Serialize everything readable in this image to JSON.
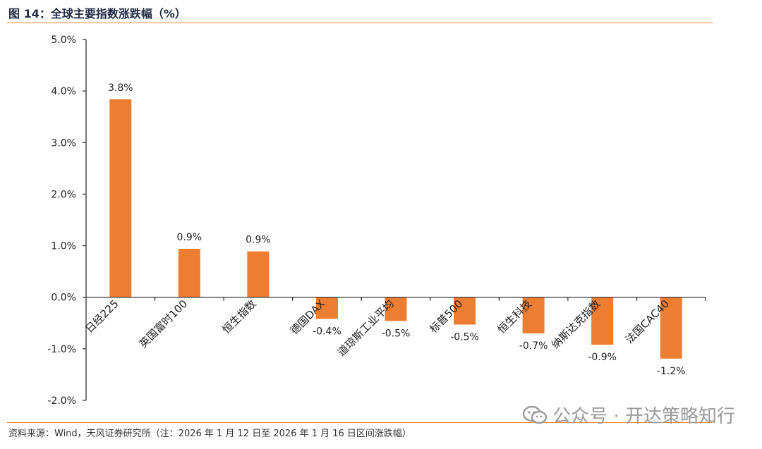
{
  "figure_title": "图 14：全球主要指数涨跌幅（%）",
  "source_note": "资料来源：Wind，天风证券研究所（注：2026 年 1 月 12 日至 2026 年 1 月 16 日区间涨跌幅）",
  "watermark": {
    "icon": "wechat-icon",
    "text": "公众号 · 开达策略知行"
  },
  "colors": {
    "bar": "#ed7d31",
    "rule": "#e8862e",
    "axis": "#333333",
    "title": "#1f2a44"
  },
  "chart_data": {
    "type": "bar",
    "title": "全球主要指数涨跌幅（%）",
    "xlabel": "",
    "ylabel": "",
    "ylim": [
      -2.0,
      5.0
    ],
    "yticks": [
      5.0,
      4.0,
      3.0,
      2.0,
      1.0,
      0.0,
      -1.0,
      -2.0
    ],
    "ytick_labels": [
      "5.0%",
      "4.0%",
      "3.0%",
      "2.0%",
      "1.0%",
      "0.0%",
      "-1.0%",
      "-2.0%"
    ],
    "grid": false,
    "categories": [
      "日经225",
      "英国富时100",
      "恒生指数",
      "德国DAX",
      "道琼斯工业平均",
      "标普500",
      "恒生科技",
      "纳斯达克指数",
      "法国CAC40"
    ],
    "values": [
      3.84,
      0.94,
      0.89,
      -0.42,
      -0.46,
      -0.53,
      -0.7,
      -0.92,
      -1.19
    ],
    "data_labels": [
      "3.8%",
      "0.9%",
      "0.9%",
      "-0.4%",
      "-0.5%",
      "-0.5%",
      "-0.7%",
      "-0.9%",
      "-1.2%"
    ]
  }
}
